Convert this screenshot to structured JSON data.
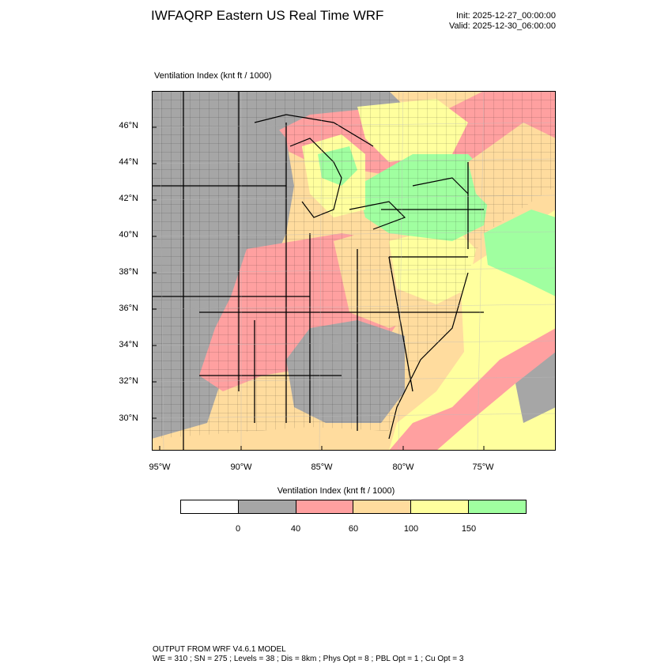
{
  "header": {
    "title": "IWFAQRP Eastern US Real Time WRF",
    "init": "Init: 2025-12-27_00:00:00",
    "valid": "Valid: 2025-12-30_06:00:00"
  },
  "map": {
    "label": "Ventilation Index   (knt ft / 1000)",
    "lat_ticks": [
      "46°N",
      "44°N",
      "42°N",
      "40°N",
      "38°N",
      "36°N",
      "34°N",
      "32°N",
      "30°N"
    ],
    "lon_ticks": [
      "95°W",
      "90°W",
      "85°W",
      "80°W",
      "75°W"
    ]
  },
  "colorbar": {
    "title": "Ventilation Index  (knt ft / 1000)",
    "labels": [
      "0",
      "40",
      "60",
      "100",
      "150"
    ],
    "colors": [
      "#ffffff",
      "#a6a6a6",
      "#ffa0a0",
      "#ffdc9e",
      "#ffff9e",
      "#a0ffa0"
    ]
  },
  "footer": {
    "line1": "OUTPUT FROM WRF V4.6.1 MODEL",
    "line2": "WE = 310 ; SN = 275 ; Levels = 38 ; Dis = 8km ; Phys Opt = 8 ; PBL Opt = 1 ; Cu Opt = 3"
  }
}
